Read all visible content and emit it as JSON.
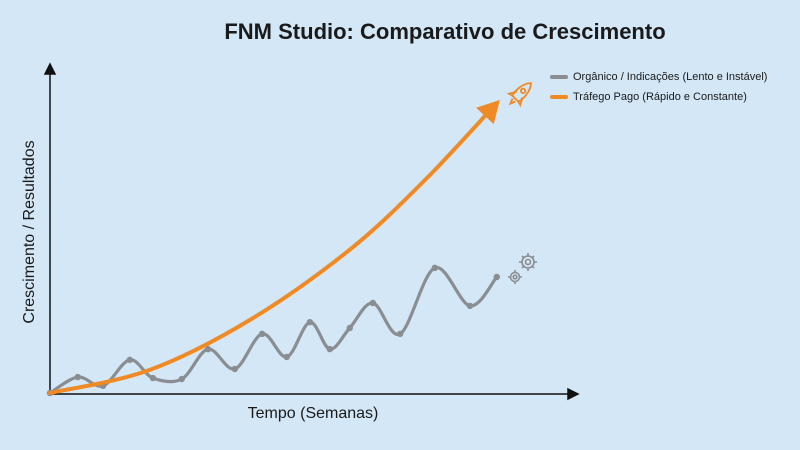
{
  "chart_data": {
    "type": "line",
    "title": "FNM Studio: Comparativo de Crescimento",
    "x_label": "Tempo (Semanas)",
    "y_label": "Crescimento / Resultados",
    "xlim": [
      0,
      100
    ],
    "ylim": [
      0,
      100
    ],
    "legend": "upper right",
    "series": [
      {
        "name": "Orgânico / Indicações (Lento e Instável)",
        "color": "#8a8d91",
        "x": [
          0,
          5.3,
          10.1,
          15.2,
          19.6,
          25.1,
          30.1,
          35.2,
          40.4,
          45.1,
          49.5,
          53.3,
          57.1,
          61.5,
          66.7,
          73.3,
          80,
          85.1
        ],
        "values": [
          0,
          4.9,
          2.2,
          10.2,
          4.6,
          4.3,
          13.5,
          7.4,
          18.2,
          11.1,
          21.8,
          13.5,
          20,
          27.7,
          18.2,
          38.5,
          26.8,
          35.7
        ]
      },
      {
        "name": "Tráfego Pago (Rápido e Constante)",
        "color": "#f08a24",
        "x": [
          0,
          19,
          38.1,
          57.1,
          71.4,
          85.7
        ],
        "values": [
          0,
          7.1,
          22.5,
          44.1,
          65.5,
          90.2
        ]
      }
    ]
  }
}
